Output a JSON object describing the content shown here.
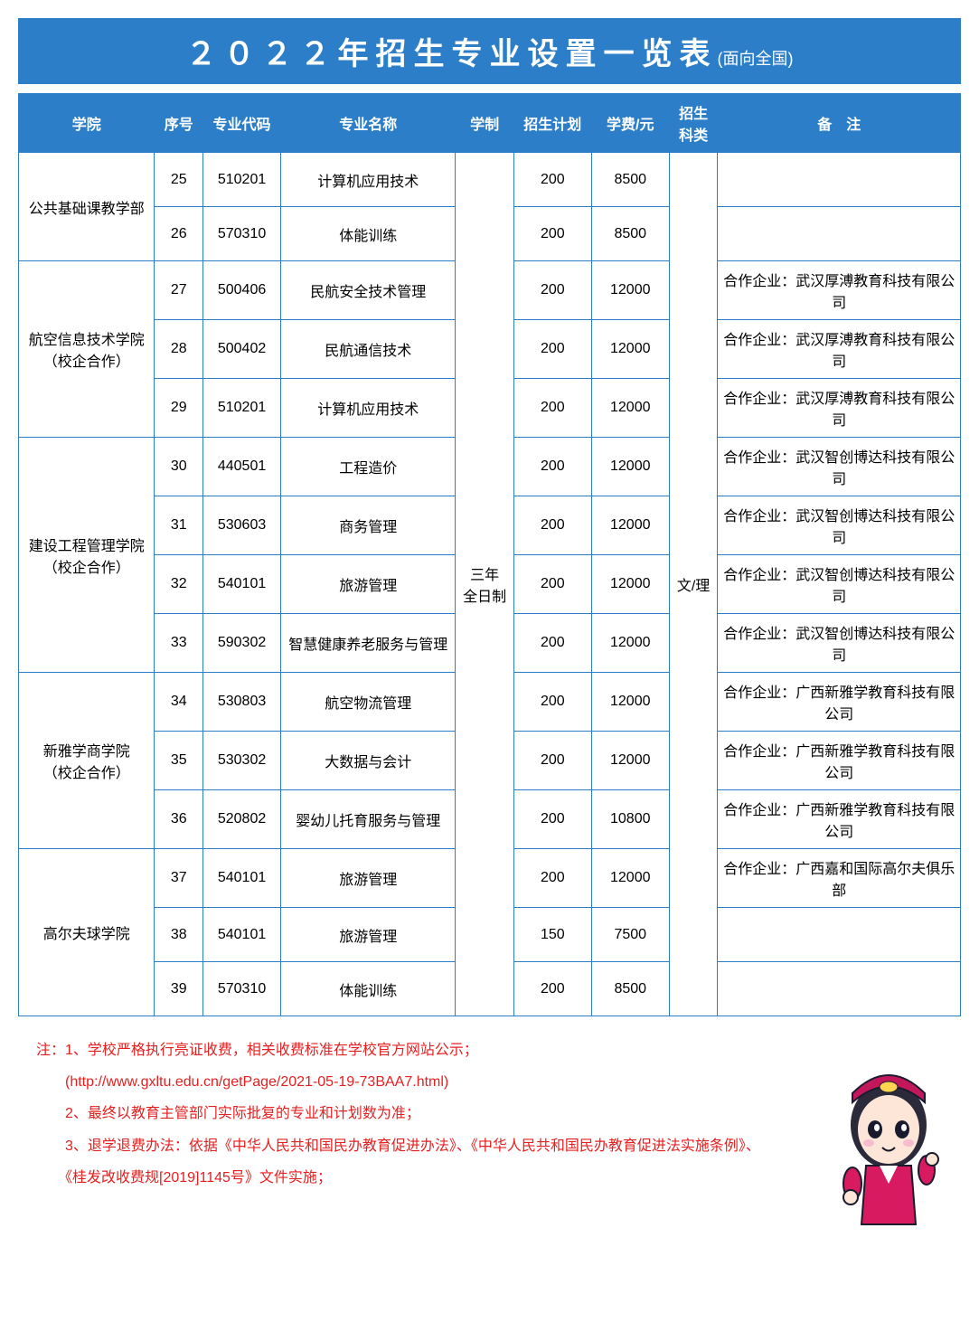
{
  "header": {
    "title": "２０２２年招生专业设置一览表",
    "subtitle": "(面向全国)",
    "bg_color": "#2c7ec8",
    "text_color": "#ffffff"
  },
  "table": {
    "border_color": "#2c7ec8",
    "header_bg": "#2c7ec8",
    "header_text_color": "#ffffff",
    "columns": [
      {
        "key": "college",
        "label": "学院"
      },
      {
        "key": "seq",
        "label": "序号"
      },
      {
        "key": "code",
        "label": "专业代码"
      },
      {
        "key": "name",
        "label": "专业名称"
      },
      {
        "key": "system",
        "label": "学制"
      },
      {
        "key": "plan",
        "label": "招生计划"
      },
      {
        "key": "fee",
        "label": "学费/元"
      },
      {
        "key": "subject",
        "label": "招生科类"
      },
      {
        "key": "remark",
        "label": "备　注"
      }
    ],
    "system_merged": "三年\n全日制",
    "subject_merged": "文/理",
    "groups": [
      {
        "college": "公共基础课教学部",
        "rows": [
          {
            "seq": "25",
            "code": "510201",
            "name": "计算机应用技术",
            "plan": "200",
            "fee": "8500",
            "remark": ""
          },
          {
            "seq": "26",
            "code": "570310",
            "name": "体能训练",
            "plan": "200",
            "fee": "8500",
            "remark": ""
          }
        ]
      },
      {
        "college": "航空信息技术学院\n（校企合作）",
        "rows": [
          {
            "seq": "27",
            "code": "500406",
            "name": "民航安全技术管理",
            "plan": "200",
            "fee": "12000",
            "remark": "合作企业：武汉厚溥教育科技有限公司"
          },
          {
            "seq": "28",
            "code": "500402",
            "name": "民航通信技术",
            "plan": "200",
            "fee": "12000",
            "remark": "合作企业：武汉厚溥教育科技有限公司"
          },
          {
            "seq": "29",
            "code": "510201",
            "name": "计算机应用技术",
            "plan": "200",
            "fee": "12000",
            "remark": "合作企业：武汉厚溥教育科技有限公司"
          }
        ]
      },
      {
        "college": "建设工程管理学院\n（校企合作）",
        "rows": [
          {
            "seq": "30",
            "code": "440501",
            "name": "工程造价",
            "plan": "200",
            "fee": "12000",
            "remark": "合作企业：武汉智创博达科技有限公司"
          },
          {
            "seq": "31",
            "code": "530603",
            "name": "商务管理",
            "plan": "200",
            "fee": "12000",
            "remark": "合作企业：武汉智创博达科技有限公司"
          },
          {
            "seq": "32",
            "code": "540101",
            "name": "旅游管理",
            "plan": "200",
            "fee": "12000",
            "remark": "合作企业：武汉智创博达科技有限公司"
          },
          {
            "seq": "33",
            "code": "590302",
            "name": "智慧健康养老服务与管理",
            "plan": "200",
            "fee": "12000",
            "remark": "合作企业：武汉智创博达科技有限公司"
          }
        ]
      },
      {
        "college": "新雅学商学院\n（校企合作）",
        "rows": [
          {
            "seq": "34",
            "code": "530803",
            "name": "航空物流管理",
            "plan": "200",
            "fee": "12000",
            "remark": "合作企业：广西新雅学教育科技有限公司"
          },
          {
            "seq": "35",
            "code": "530302",
            "name": "大数据与会计",
            "plan": "200",
            "fee": "12000",
            "remark": "合作企业：广西新雅学教育科技有限公司"
          },
          {
            "seq": "36",
            "code": "520802",
            "name": "婴幼儿托育服务与管理",
            "plan": "200",
            "fee": "10800",
            "remark": "合作企业：广西新雅学教育科技有限公司"
          }
        ]
      },
      {
        "college": "高尔夫球学院",
        "rows": [
          {
            "seq": "37",
            "code": "540101",
            "name": "旅游管理",
            "plan": "200",
            "fee": "12000",
            "remark": "合作企业：广西嘉和国际高尔夫俱乐部"
          },
          {
            "seq": "38",
            "code": "540101",
            "name": "旅游管理",
            "plan": "150",
            "fee": "7500",
            "remark": ""
          },
          {
            "seq": "39",
            "code": "570310",
            "name": "体能训练",
            "plan": "200",
            "fee": "8500",
            "remark": ""
          }
        ]
      }
    ]
  },
  "notes": {
    "color": "#e62020",
    "lines": [
      "注：1、学校严格执行亮证收费，相关收费标准在学校官方网站公示；",
      "　　(http://www.gxltu.edu.cn/getPage/2021-05-19-73BAA7.html)",
      "　　2、最终以教育主管部门实际批复的专业和计划数为准；",
      "　　3、退学退费办法：依据《中华人民共和国民办教育促进办法》、《中华人民共和国民办教育促进法实施条例》、",
      "　　《桂发改收费规[2019]1145号》文件实施；"
    ]
  },
  "mascot": {
    "hat_color": "#c2185b",
    "face_color": "#fde6d8",
    "hair_color": "#2a2a3a",
    "uniform_color": "#d81b60",
    "outline_color": "#1a1a2e"
  }
}
